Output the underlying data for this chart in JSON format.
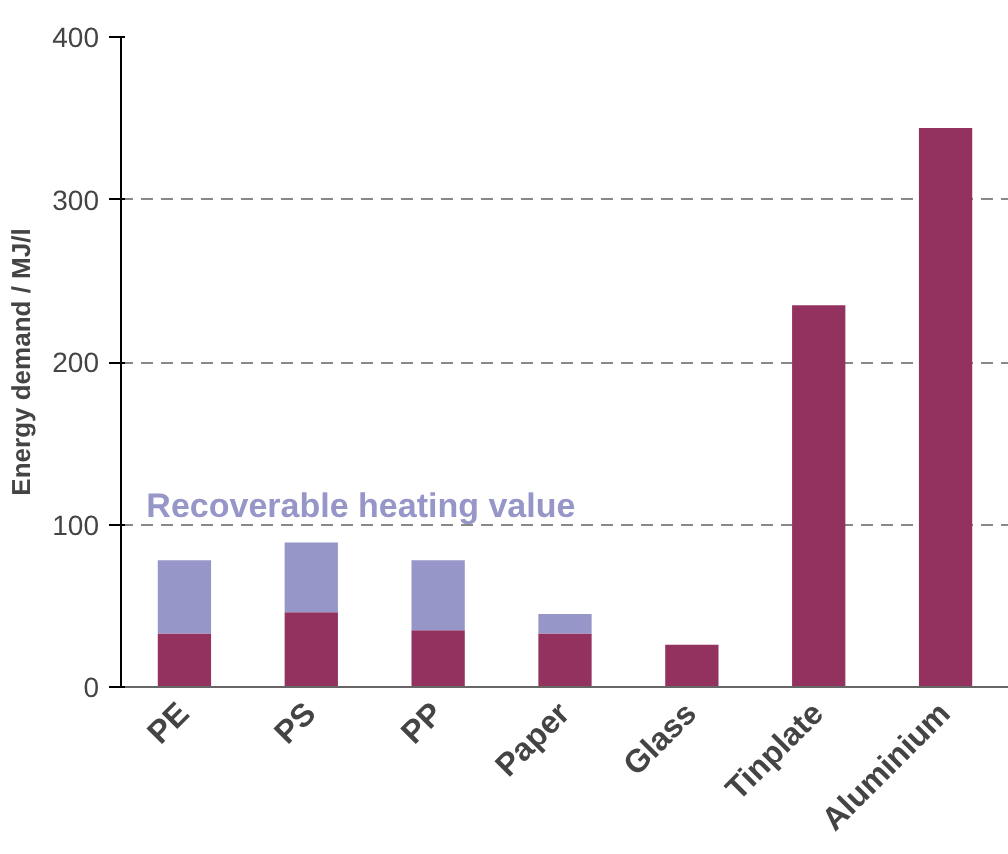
{
  "chart_data": {
    "type": "bar",
    "stacked": true,
    "ylabel": "Energy demand / MJ/l",
    "categories": [
      "PE",
      "PS",
      "PP",
      "Paper",
      "Glass",
      "Tinplate",
      "Aluminium"
    ],
    "series": [
      {
        "color": "#93325f",
        "values": [
          33,
          46,
          35,
          33,
          26,
          235,
          344
        ]
      },
      {
        "name": "Recoverable heating value",
        "color": "#9696c8",
        "values": [
          45,
          43,
          43,
          12,
          null,
          null,
          null
        ]
      }
    ],
    "ylim": [
      0,
      400
    ],
    "yticks": [
      0,
      100,
      200,
      300,
      400
    ],
    "grid": "y"
  }
}
